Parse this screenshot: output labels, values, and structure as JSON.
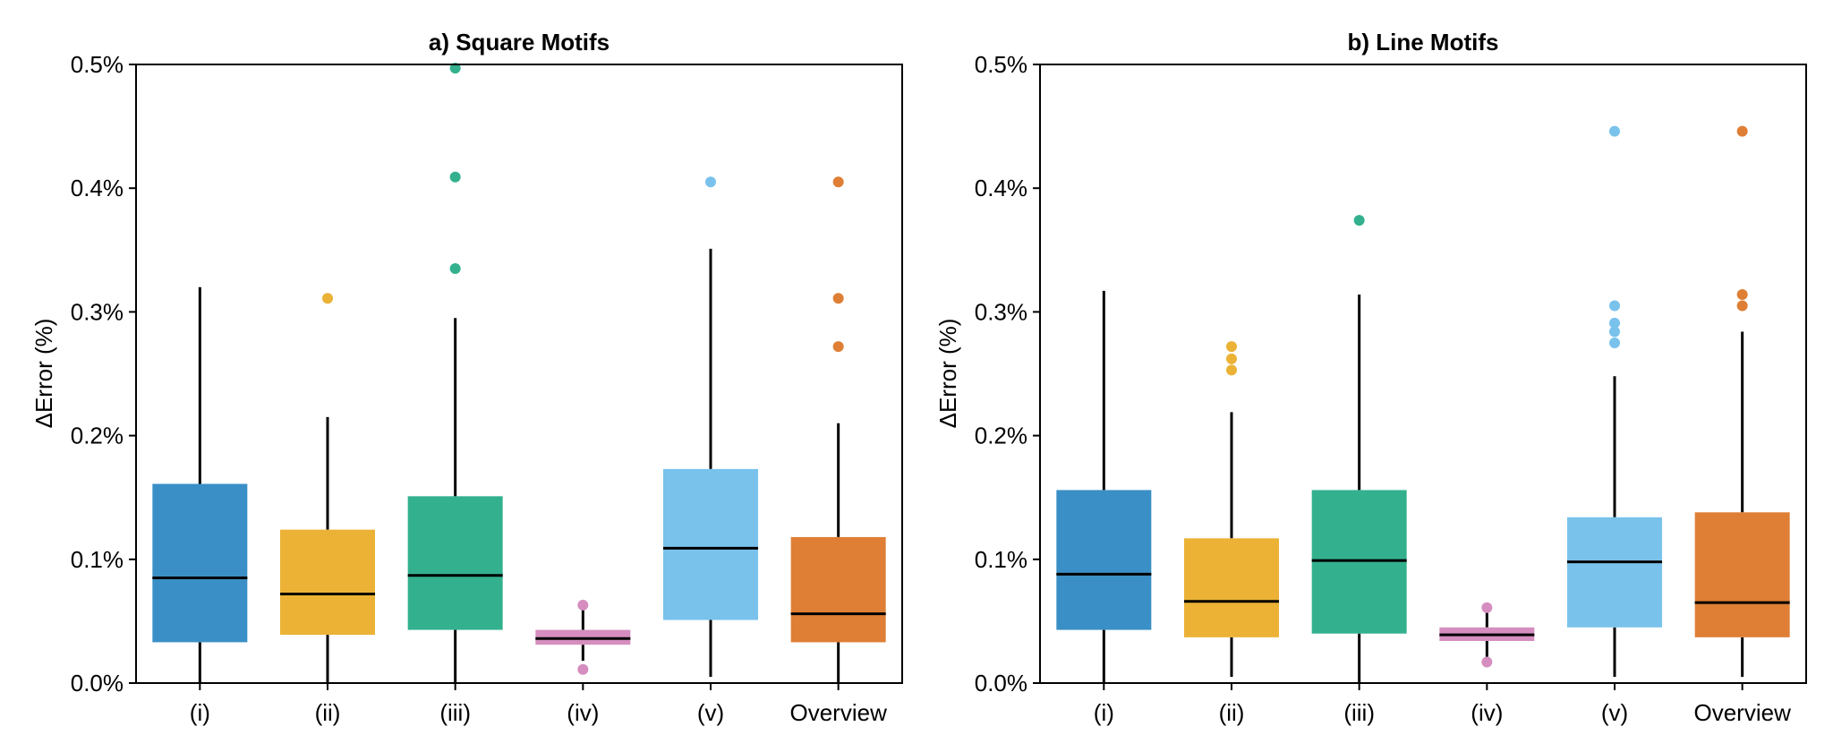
{
  "chart_data": [
    {
      "type": "box",
      "title": "a) Square Motifs",
      "xlabel": "",
      "ylabel": "ΔError (%)",
      "ylim": [
        0,
        0.5
      ],
      "yticks": [
        0.0,
        0.1,
        0.2,
        0.3,
        0.4,
        0.5
      ],
      "ytick_labels": [
        "0.0%",
        "0.1%",
        "0.2%",
        "0.3%",
        "0.4%",
        "0.5%"
      ],
      "categories": [
        "(i)",
        "(ii)",
        "(iii)",
        "(iv)",
        "(v)",
        "Overview"
      ],
      "boxes": [
        {
          "category": "(i)",
          "color": "#3a8fc6",
          "whisker_low": 0.0,
          "q1": 0.033,
          "median": 0.085,
          "q3": 0.161,
          "whisker_high": 0.32,
          "outliers": []
        },
        {
          "category": "(ii)",
          "color": "#ebb236",
          "whisker_low": 0.0,
          "q1": 0.039,
          "median": 0.072,
          "q3": 0.124,
          "whisker_high": 0.215,
          "outliers": [
            0.311
          ]
        },
        {
          "category": "(iii)",
          "color": "#33b18e",
          "whisker_low": 0.0,
          "q1": 0.043,
          "median": 0.087,
          "q3": 0.151,
          "whisker_high": 0.295,
          "outliers": [
            0.335,
            0.409,
            0.497
          ]
        },
        {
          "category": "(iv)",
          "color": "#d58ebf",
          "whisker_low": 0.018,
          "q1": 0.031,
          "median": 0.036,
          "q3": 0.043,
          "whisker_high": 0.06,
          "outliers": [
            0.011,
            0.063
          ]
        },
        {
          "category": "(v)",
          "color": "#79c2ec",
          "whisker_low": 0.005,
          "q1": 0.051,
          "median": 0.109,
          "q3": 0.173,
          "whisker_high": 0.351,
          "outliers": [
            0.405
          ]
        },
        {
          "category": "Overview",
          "color": "#de7f35",
          "whisker_low": 0.0,
          "q1": 0.033,
          "median": 0.056,
          "q3": 0.118,
          "whisker_high": 0.21,
          "outliers": [
            0.272,
            0.311,
            0.405
          ]
        }
      ]
    },
    {
      "type": "box",
      "title": "b) Line Motifs",
      "xlabel": "",
      "ylabel": "ΔError (%)",
      "ylim": [
        0,
        0.5
      ],
      "yticks": [
        0.0,
        0.1,
        0.2,
        0.3,
        0.4,
        0.5
      ],
      "ytick_labels": [
        "0.0%",
        "0.1%",
        "0.2%",
        "0.3%",
        "0.4%",
        "0.5%"
      ],
      "categories": [
        "(i)",
        "(ii)",
        "(iii)",
        "(iv)",
        "(v)",
        "Overview"
      ],
      "boxes": [
        {
          "category": "(i)",
          "color": "#3a8fc6",
          "whisker_low": 0.0,
          "q1": 0.043,
          "median": 0.088,
          "q3": 0.156,
          "whisker_high": 0.317,
          "outliers": []
        },
        {
          "category": "(ii)",
          "color": "#ebb236",
          "whisker_low": 0.005,
          "q1": 0.037,
          "median": 0.066,
          "q3": 0.117,
          "whisker_high": 0.219,
          "outliers": [
            0.253,
            0.262,
            0.272
          ]
        },
        {
          "category": "(iii)",
          "color": "#33b18e",
          "whisker_low": 0.0,
          "q1": 0.04,
          "median": 0.099,
          "q3": 0.156,
          "whisker_high": 0.314,
          "outliers": [
            0.374
          ]
        },
        {
          "category": "(iv)",
          "color": "#d58ebf",
          "whisker_low": 0.02,
          "q1": 0.034,
          "median": 0.039,
          "q3": 0.045,
          "whisker_high": 0.058,
          "outliers": [
            0.017,
            0.061
          ]
        },
        {
          "category": "(v)",
          "color": "#79c2ec",
          "whisker_low": 0.005,
          "q1": 0.045,
          "median": 0.098,
          "q3": 0.134,
          "whisker_high": 0.248,
          "outliers": [
            0.275,
            0.284,
            0.291,
            0.305,
            0.446
          ]
        },
        {
          "category": "Overview",
          "color": "#de7f35",
          "whisker_low": 0.005,
          "q1": 0.037,
          "median": 0.065,
          "q3": 0.138,
          "whisker_high": 0.284,
          "outliers": [
            0.305,
            0.314,
            0.446
          ]
        }
      ]
    }
  ]
}
